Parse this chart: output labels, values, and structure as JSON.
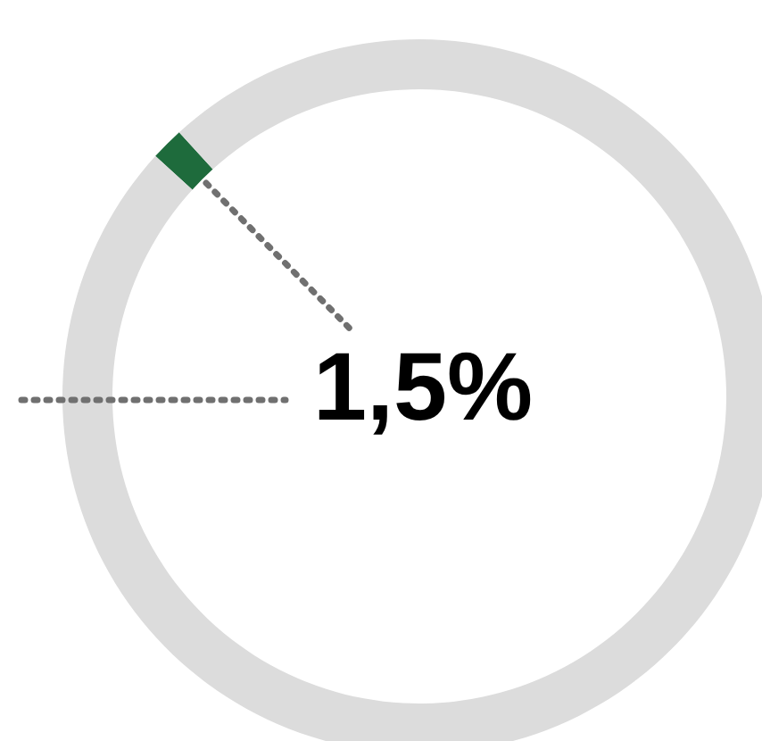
{
  "chart_data": {
    "type": "donut",
    "categories": [
      null,
      null
    ],
    "values": [
      1.5,
      98.5
    ],
    "colors": [
      "#1e6b3c",
      "#dcdcdc"
    ],
    "annotations": [
      "1,5%"
    ]
  }
}
